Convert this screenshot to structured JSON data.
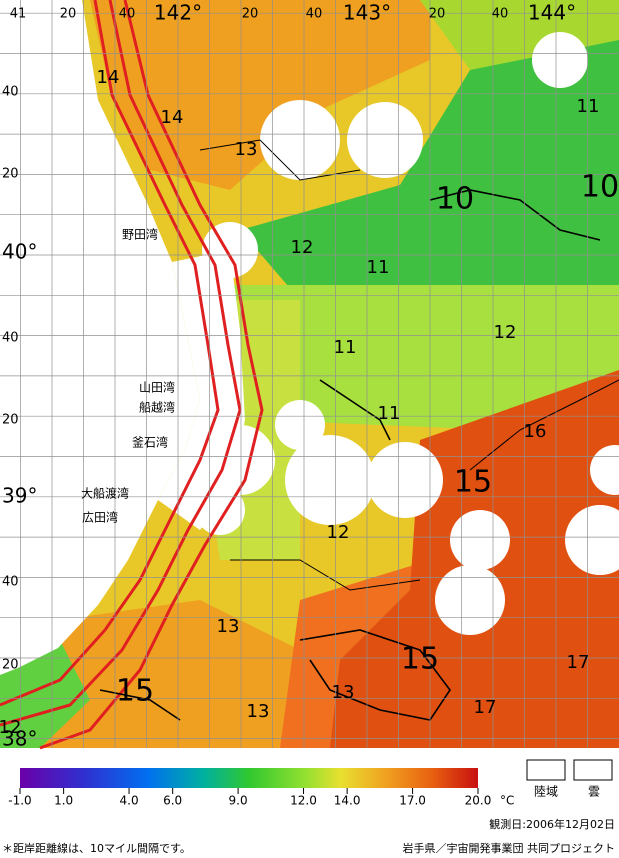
{
  "map": {
    "top_labels": [
      "41",
      "20",
      "40",
      "142°",
      "20",
      "40",
      "143°",
      "20",
      "40",
      "144°"
    ],
    "left_labels": [
      "40",
      "20",
      "40°",
      "40",
      "20",
      "39°",
      "40",
      "20",
      "38°"
    ],
    "contour_labels": [
      "14",
      "14",
      "13",
      "10",
      "10",
      "11",
      "12",
      "11",
      "12",
      "11",
      "11",
      "16",
      "15",
      "12",
      "13",
      "15",
      "13",
      "17",
      "17",
      "13",
      "15",
      "12"
    ],
    "place_names": [
      "野田湾",
      "山田湾",
      "船越湾",
      "釜石湾",
      "大船渡湾",
      "広田湾"
    ]
  },
  "colorbar": {
    "range": [
      -1,
      20
    ],
    "ticks": [
      {
        "value": -1,
        "label": "-1.0"
      },
      {
        "value": 1,
        "label": "1.0"
      },
      {
        "value": 4,
        "label": "4.0"
      },
      {
        "value": 6,
        "label": "6.0"
      },
      {
        "value": 9,
        "label": "9.0"
      },
      {
        "value": 12,
        "label": "12.0"
      },
      {
        "value": 14,
        "label": "14.0"
      },
      {
        "value": 17,
        "label": "17.0"
      },
      {
        "value": 20,
        "label": "20.0"
      }
    ],
    "unit": "°C"
  },
  "legend": [
    "陸域",
    "雲"
  ],
  "observation_date": "観測日:2006年12月02日",
  "footnote": "＊距岸距離線は、10マイル間隔です。",
  "credit": "岩手県／宇宙開発事業団 共同プロジェクト"
}
